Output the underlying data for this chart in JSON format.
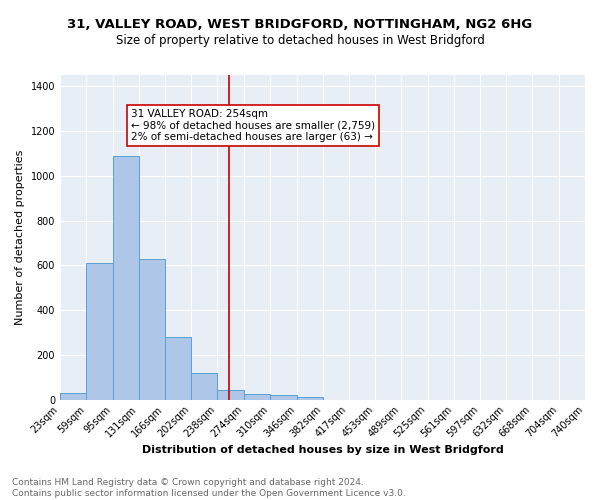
{
  "title_line1": "31, VALLEY ROAD, WEST BRIDGFORD, NOTTINGHAM, NG2 6HG",
  "title_line2": "Size of property relative to detached houses in West Bridgford",
  "xlabel": "Distribution of detached houses by size in West Bridgford",
  "ylabel": "Number of detached properties",
  "bin_edges": [
    23,
    59,
    95,
    131,
    166,
    202,
    238,
    274,
    310,
    346,
    382,
    417,
    453,
    489,
    525,
    561,
    597,
    632,
    668,
    704,
    740
  ],
  "bin_labels": [
    "23sqm",
    "59sqm",
    "95sqm",
    "131sqm",
    "166sqm",
    "202sqm",
    "238sqm",
    "274sqm",
    "310sqm",
    "346sqm",
    "382sqm",
    "417sqm",
    "453sqm",
    "489sqm",
    "525sqm",
    "561sqm",
    "597sqm",
    "632sqm",
    "668sqm",
    "704sqm",
    "740sqm"
  ],
  "counts": [
    28,
    610,
    1090,
    630,
    280,
    120,
    45,
    25,
    20,
    13,
    0,
    0,
    0,
    0,
    0,
    0,
    0,
    0,
    0,
    0
  ],
  "bar_color": "#aec6e8",
  "bar_edge_color": "#5a9fd4",
  "property_size": 254,
  "vline_color": "#cc0000",
  "annotation_line1": "31 VALLEY ROAD: 254sqm",
  "annotation_line2": "← 98% of detached houses are smaller (2,759)",
  "annotation_line3": "2% of semi-detached houses are larger (63) →",
  "annotation_box_color": "white",
  "annotation_box_edge_color": "#cc0000",
  "ylim": [
    0,
    1450
  ],
  "yticks": [
    0,
    200,
    400,
    600,
    800,
    1000,
    1200,
    1400
  ],
  "background_color": "#e8eef5",
  "footer_line1": "Contains HM Land Registry data © Crown copyright and database right 2024.",
  "footer_line2": "Contains public sector information licensed under the Open Government Licence v3.0.",
  "title_fontsize": 9.5,
  "subtitle_fontsize": 8.5,
  "axis_label_fontsize": 8,
  "tick_fontsize": 7,
  "annotation_fontsize": 7.5,
  "footer_fontsize": 6.5
}
